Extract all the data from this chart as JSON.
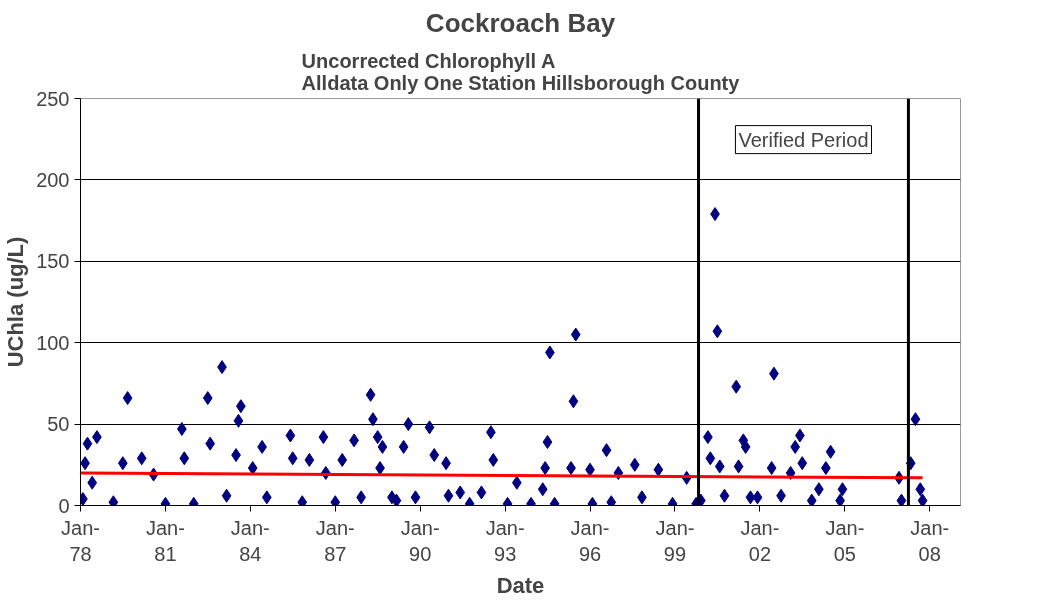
{
  "chart_data": {
    "type": "scatter",
    "title": "Cockroach Bay",
    "subtitle": "Uncorrected Chlorophyll A\nAlldata Only One Station Hillsborough County",
    "xlabel": "Date",
    "ylabel": "UChla (ug/L)",
    "grid": "y",
    "xlim": [
      "1978-01",
      "2009-02"
    ],
    "ylim": [
      0,
      250
    ],
    "yticks": [
      0,
      50,
      100,
      150,
      200,
      250
    ],
    "xticks": [
      {
        "value": "1978-01",
        "label": "Jan-78"
      },
      {
        "value": "1981-01",
        "label": "Jan-81"
      },
      {
        "value": "1984-01",
        "label": "Jan-84"
      },
      {
        "value": "1987-01",
        "label": "Jan-87"
      },
      {
        "value": "1990-01",
        "label": "Jan-90"
      },
      {
        "value": "1993-01",
        "label": "Jan-93"
      },
      {
        "value": "1996-01",
        "label": "Jan-96"
      },
      {
        "value": "1999-01",
        "label": "Jan-99"
      },
      {
        "value": "2002-01",
        "label": "Jan-02"
      },
      {
        "value": "2005-01",
        "label": "Jan-05"
      },
      {
        "value": "2008-01",
        "label": "Jan-08"
      }
    ],
    "ref_lines": [
      {
        "axis": "x",
        "value": "1999-11",
        "color": "#000000"
      },
      {
        "axis": "x",
        "value": "2007-04",
        "color": "#000000"
      }
    ],
    "annotations": [
      "Verified Period"
    ],
    "series": [
      {
        "marker": "diamond",
        "color": "#000080",
        "x": [
          "1978-02",
          "1978-03",
          "1978-04",
          "1978-06",
          "1978-08",
          "1979-03",
          "1979-07",
          "1979-09",
          "1980-03",
          "1980-08",
          "1981-01",
          "1981-08",
          "1981-09",
          "1982-01",
          "1982-07",
          "1982-08",
          "1983-01",
          "1983-03",
          "1983-07",
          "1983-08",
          "1983-09",
          "1984-02",
          "1984-06",
          "1984-08",
          "1985-06",
          "1985-07",
          "1985-11",
          "1986-02",
          "1986-08",
          "1986-09",
          "1987-01",
          "1987-04",
          "1987-09",
          "1987-12",
          "1988-04",
          "1988-05",
          "1988-07",
          "1988-08",
          "1988-09",
          "1989-01",
          "1989-03",
          "1989-06",
          "1989-08",
          "1989-11",
          "1990-05",
          "1990-07",
          "1990-12",
          "1991-01",
          "1991-06",
          "1991-10",
          "1992-03",
          "1992-07",
          "1992-08",
          "1993-02",
          "1993-06",
          "1993-12",
          "1994-05",
          "1994-06",
          "1994-07",
          "1994-08",
          "1994-10",
          "1995-05",
          "1995-06",
          "1995-07",
          "1996-01",
          "1996-02",
          "1996-08",
          "1996-10",
          "1997-01",
          "1997-08",
          "1997-11",
          "1998-06",
          "1998-12",
          "1999-06",
          "1999-10",
          "1999-12",
          "2000-03",
          "2000-04",
          "2000-06",
          "2000-07",
          "2000-08",
          "2000-10",
          "2001-03",
          "2001-04",
          "2001-06",
          "2001-07",
          "2001-09",
          "2001-12",
          "2002-06",
          "2002-07",
          "2002-10",
          "2003-02",
          "2003-04",
          "2003-06",
          "2003-07",
          "2003-11",
          "2004-02",
          "2004-05",
          "2004-07",
          "2004-11",
          "2004-12",
          "2006-12",
          "2007-01",
          "2007-05",
          "2007-07",
          "2007-09",
          "2007-10"
        ],
        "values": [
          4,
          26,
          38,
          14,
          42,
          2,
          26,
          66,
          29,
          19,
          1,
          47,
          29,
          1,
          66,
          38,
          85,
          6,
          31,
          52,
          61,
          23,
          36,
          5,
          43,
          29,
          2,
          28,
          42,
          20,
          2,
          28,
          40,
          5,
          68,
          53,
          42,
          23,
          36,
          5,
          3,
          36,
          50,
          5,
          48,
          31,
          26,
          6,
          8,
          1,
          8,
          45,
          28,
          1,
          14,
          1,
          10,
          23,
          39,
          94,
          1,
          23,
          64,
          105,
          22,
          1,
          34,
          2,
          20,
          25,
          5,
          22,
          1,
          17,
          1,
          3,
          42,
          29,
          179,
          107,
          24,
          6,
          73,
          24,
          40,
          36,
          5,
          5,
          23,
          81,
          6,
          20,
          36,
          43,
          26,
          3,
          10,
          23,
          33,
          3,
          10,
          17,
          3,
          26,
          53,
          10,
          3
        ]
      },
      {
        "type": "line",
        "marker": "none",
        "color": "#ff0000",
        "x": [
          "1978-01",
          "2007-10"
        ],
        "values": [
          20,
          17
        ]
      }
    ]
  }
}
